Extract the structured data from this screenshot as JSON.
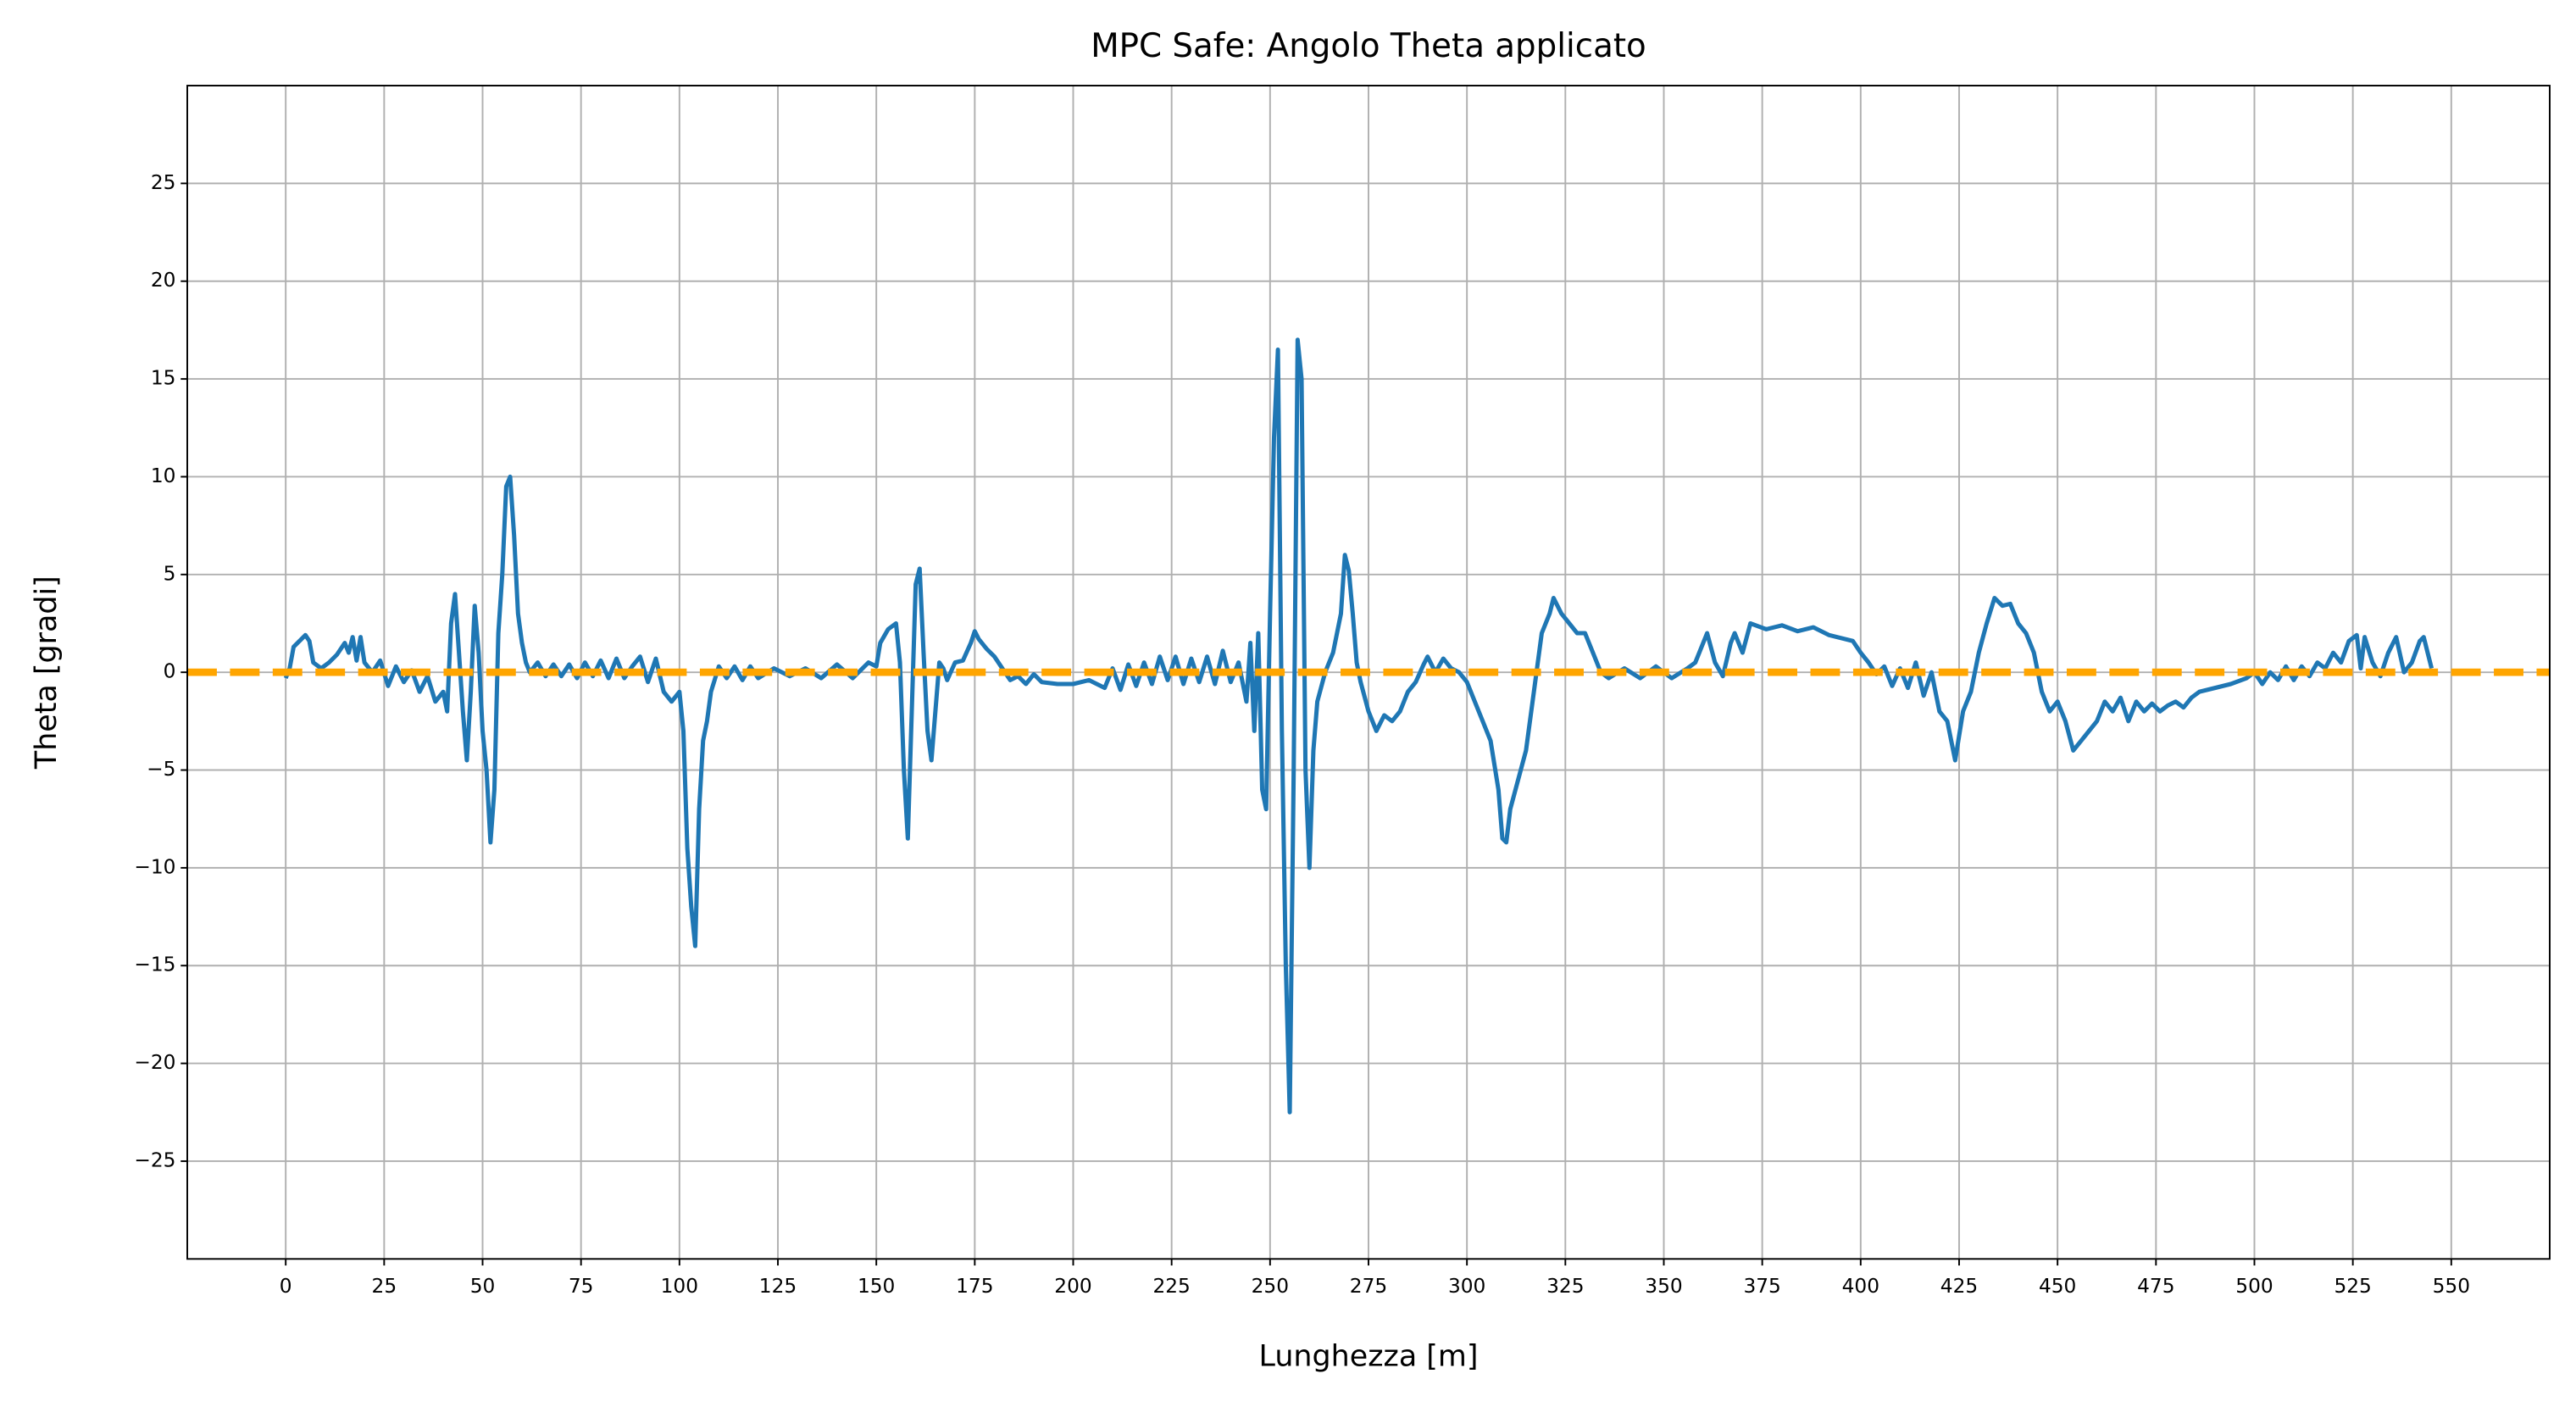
{
  "chart_data": {
    "type": "line",
    "title": "MPC Safe: Angolo Theta applicato",
    "xlabel": "Lunghezza [m]",
    "ylabel": "Theta [gradi]",
    "xlim": [
      -25,
      575
    ],
    "ylim": [
      -30,
      30
    ],
    "xticks": [
      0,
      25,
      50,
      75,
      100,
      125,
      150,
      175,
      200,
      225,
      250,
      275,
      300,
      325,
      350,
      375,
      400,
      425,
      450,
      475,
      500,
      525,
      550
    ],
    "yticks": [
      {
        "value": -25,
        "label": "−25"
      },
      {
        "value": -20,
        "label": "−20"
      },
      {
        "value": -15,
        "label": "−15"
      },
      {
        "value": -10,
        "label": "−10"
      },
      {
        "value": -5,
        "label": "−5"
      },
      0,
      5,
      10,
      15,
      20,
      25
    ],
    "grid": true,
    "hline": 0,
    "hline_color": "#ffa500",
    "series": [
      {
        "color": "#1f77b4",
        "x": [
          0,
          1,
          2,
          4,
          5,
          6,
          7,
          9,
          11,
          13,
          15,
          16,
          17,
          18,
          19,
          20,
          22,
          24,
          26,
          28,
          30,
          32,
          34,
          36,
          38,
          40,
          41,
          42,
          43,
          44,
          45,
          46,
          47,
          48,
          49,
          50,
          51,
          52,
          53,
          54,
          55,
          56,
          57,
          58,
          59,
          60,
          61,
          62,
          64,
          66,
          68,
          70,
          72,
          74,
          76,
          78,
          80,
          82,
          84,
          86,
          88,
          90,
          92,
          94,
          96,
          98,
          100,
          101,
          102,
          103,
          104,
          105,
          106,
          107,
          108,
          110,
          112,
          114,
          116,
          118,
          120,
          124,
          128,
          132,
          136,
          140,
          144,
          148,
          150,
          151,
          153,
          155,
          156,
          157,
          158,
          159,
          160,
          161,
          162,
          163,
          164,
          165,
          166,
          167,
          168,
          170,
          172,
          174,
          175,
          176,
          178,
          180,
          182,
          184,
          186,
          188,
          190,
          192,
          196,
          200,
          204,
          208,
          210,
          212,
          214,
          216,
          218,
          220,
          222,
          224,
          226,
          228,
          230,
          232,
          234,
          236,
          238,
          240,
          242,
          244,
          245,
          246,
          247,
          248,
          249,
          250,
          251,
          252,
          253,
          254,
          255,
          256,
          257,
          258,
          259,
          260,
          261,
          262,
          264,
          266,
          268,
          269,
          270,
          271,
          272,
          273,
          275,
          276,
          277,
          279,
          281,
          283,
          285,
          287,
          289,
          290,
          292,
          294,
          296,
          298,
          300,
          302,
          304,
          306,
          308,
          309,
          310,
          311,
          313,
          315,
          317,
          319,
          321,
          322,
          324,
          326,
          328,
          330,
          332,
          334,
          336,
          340,
          344,
          348,
          352,
          356,
          358,
          360,
          361,
          363,
          365,
          367,
          368,
          370,
          372,
          376,
          380,
          384,
          388,
          392,
          396,
          398,
          400,
          402,
          404,
          406,
          408,
          410,
          412,
          414,
          416,
          418,
          420,
          422,
          424,
          426,
          428,
          430,
          432,
          434,
          436,
          438,
          440,
          442,
          444,
          446,
          448,
          450,
          452,
          454,
          456,
          458,
          460,
          462,
          464,
          466,
          468,
          470,
          472,
          474,
          476,
          478,
          480,
          482,
          484,
          486,
          490,
          494,
          498,
          500,
          502,
          504,
          506,
          508,
          510,
          512,
          514,
          516,
          518,
          520,
          522,
          524,
          526,
          527,
          528,
          530,
          532,
          534,
          536,
          538,
          540,
          542,
          543,
          544,
          545
        ],
        "values": [
          -0.3,
          0.2,
          1.3,
          1.7,
          1.9,
          1.6,
          0.5,
          0.2,
          0.5,
          0.9,
          1.5,
          1.0,
          1.8,
          0.6,
          1.8,
          0.5,
          0,
          0.6,
          -0.7,
          0.3,
          -0.5,
          0.1,
          -1,
          -0.2,
          -1.5,
          -1.0,
          -2,
          2.5,
          4,
          1,
          -2,
          -4.5,
          -1,
          3.4,
          1,
          -3,
          -5,
          -8.7,
          -6,
          2,
          5,
          9.5,
          10,
          7,
          3,
          1.5,
          0.5,
          0,
          0.5,
          -0.2,
          0.4,
          -0.2,
          0.4,
          -0.3,
          0.5,
          -0.2,
          0.6,
          -0.3,
          0.7,
          -0.3,
          0.3,
          0.8,
          -0.5,
          0.7,
          -1,
          -1.5,
          -1,
          -3,
          -9,
          -12,
          -14,
          -7,
          -3.5,
          -2.5,
          -1,
          0.3,
          -0.3,
          0.3,
          -0.4,
          0.3,
          -0.3,
          0.2,
          -0.2,
          0.2,
          -0.3,
          0.4,
          -0.3,
          0.5,
          0.3,
          1.5,
          2.2,
          2.5,
          0.5,
          -5,
          -8.5,
          -2,
          4.5,
          5.3,
          1,
          -3,
          -4.5,
          -2,
          0.5,
          0.2,
          -0.4,
          0.5,
          0.6,
          1.5,
          2.1,
          1.7,
          1.2,
          0.8,
          0.2,
          -0.4,
          -0.2,
          -0.6,
          -0.1,
          -0.5,
          -0.6,
          -0.6,
          -0.4,
          -0.8,
          0.2,
          -0.9,
          0.4,
          -0.7,
          0.5,
          -0.6,
          0.8,
          -0.4,
          0.8,
          -0.6,
          0.7,
          -0.5,
          0.8,
          -0.6,
          1.1,
          -0.5,
          0.5,
          -1.5,
          1.5,
          -3,
          2,
          -6,
          -7,
          3,
          12,
          16.5,
          -3,
          -15,
          -22.5,
          -5,
          17,
          15,
          -5,
          -10,
          -4,
          -1.5,
          0,
          1,
          3,
          6,
          5.2,
          3,
          0.5,
          -0.5,
          -2,
          -2.5,
          -3,
          -2.2,
          -2.5,
          -2,
          -1,
          -0.5,
          0.4,
          0.8,
          0,
          0.7,
          0.2,
          0,
          -0.5,
          -1.5,
          -2.5,
          -3.5,
          -6,
          -8.5,
          -8.7,
          -7,
          -5.5,
          -4,
          -1,
          2,
          3,
          3.8,
          3,
          2.5,
          2,
          2,
          1,
          0,
          -0.3,
          0.2,
          -0.3,
          0.3,
          -0.3,
          0.2,
          0.5,
          1.5,
          2,
          0.5,
          -0.2,
          1.5,
          2,
          1,
          2.5,
          2.2,
          2.4,
          2.1,
          2.3,
          1.9,
          1.7,
          1.6,
          1,
          0.5,
          -0.1,
          0.3,
          -0.7,
          0.2,
          -0.8,
          0.5,
          -1.2,
          0,
          -2,
          -2.5,
          -4.5,
          -2,
          -1,
          1,
          2.5,
          3.8,
          3.4,
          3.5,
          2.5,
          2,
          1,
          -1,
          -2,
          -1.5,
          -2.5,
          -4,
          -3.5,
          -3,
          -2.5,
          -1.5,
          -2,
          -1.3,
          -2.5,
          -1.5,
          -2,
          -1.6,
          -2,
          -1.7,
          -1.5,
          -1.8,
          -1.3,
          -1,
          -0.8,
          -0.6,
          -0.3,
          0,
          -0.6,
          0,
          -0.4,
          0.3,
          -0.4,
          0.3,
          -0.2,
          0.5,
          0.2,
          1,
          0.5,
          1.6,
          1.9,
          0.2,
          1.8,
          0.5,
          -0.2,
          1,
          1.8,
          0,
          0.5,
          1.6,
          1.8,
          1,
          0.2
        ]
      }
    ]
  }
}
